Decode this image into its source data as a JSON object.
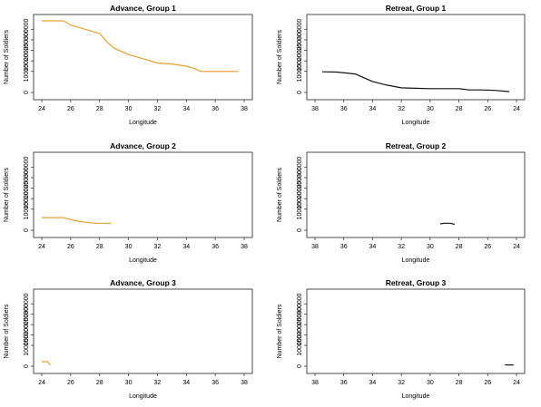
{
  "chart_data": [
    {
      "type": "line",
      "title": "Advance, Group  1",
      "xlabel": "Longitude",
      "ylabel": "Number of Soldiers",
      "xlim": [
        24,
        38
      ],
      "ylim": [
        0,
        340000
      ],
      "x_ticks": [
        "24",
        "26",
        "28",
        "30",
        "32",
        "34",
        "36",
        "38"
      ],
      "y_ticks": [
        "0",
        "100000",
        "150000",
        "200000",
        "250000",
        "300000"
      ],
      "color": "#e8a030",
      "series": [
        {
          "x": [
            24.0,
            25.5,
            26.0,
            27.0,
            28.0,
            28.5,
            29.0,
            30.0,
            31.0,
            32.0,
            33.0,
            34.0,
            34.5,
            35.0,
            35.5,
            36.0,
            36.5,
            37.0,
            37.6
          ],
          "y": [
            340000,
            340000,
            320000,
            300000,
            280000,
            240000,
            210000,
            180000,
            160000,
            140000,
            135000,
            125000,
            115000,
            100000,
            100000,
            100000,
            100000,
            100000,
            100000
          ]
        }
      ]
    },
    {
      "type": "line",
      "title": "Retreat, Group 1",
      "xlabel": "Longitude",
      "ylabel": "Number of Soldiers",
      "xlim": [
        38,
        24
      ],
      "ylim": [
        0,
        340000
      ],
      "x_ticks": [
        "38",
        "36",
        "34",
        "32",
        "30",
        "28",
        "26",
        "24"
      ],
      "y_ticks": [
        "0",
        "100000",
        "150000",
        "200000",
        "250000",
        "300000"
      ],
      "color": "#111111",
      "series": [
        {
          "x": [
            37.5,
            36.5,
            35.2,
            34.0,
            33.0,
            32.0,
            31.0,
            30.0,
            29.0,
            28.0,
            27.3,
            26.5,
            25.5,
            24.5
          ],
          "y": [
            98000,
            97000,
            88000,
            52000,
            35000,
            22000,
            20000,
            18000,
            18000,
            18000,
            12000,
            12000,
            10000,
            4000
          ]
        }
      ]
    },
    {
      "type": "line",
      "title": "Advance, Group  2",
      "xlabel": "Longitude",
      "ylabel": "Number of Soldiers",
      "xlim": [
        24,
        38
      ],
      "ylim": [
        0,
        340000
      ],
      "x_ticks": [
        "24",
        "26",
        "28",
        "30",
        "32",
        "34",
        "36",
        "38"
      ],
      "y_ticks": [
        "0",
        "100000",
        "150000",
        "200000",
        "250000",
        "300000"
      ],
      "color": "#e8a030",
      "series": [
        {
          "x": [
            24.0,
            25.5,
            26.3,
            27.0,
            27.7,
            28.8
          ],
          "y": [
            60000,
            60000,
            45000,
            38000,
            33000,
            33000
          ]
        }
      ]
    },
    {
      "type": "line",
      "title": "Retreat, Group 2",
      "xlabel": "Longitude",
      "ylabel": "Number of Soldiers",
      "xlim": [
        38,
        24
      ],
      "ylim": [
        0,
        340000
      ],
      "x_ticks": [
        "38",
        "36",
        "34",
        "32",
        "30",
        "28",
        "26",
        "24"
      ],
      "y_ticks": [
        "0",
        "100000",
        "150000",
        "200000",
        "250000",
        "300000"
      ],
      "color": "#111111",
      "series": [
        {
          "x": [
            29.3,
            29.0,
            28.6,
            28.3
          ],
          "y": [
            30000,
            33000,
            33000,
            28000
          ]
        }
      ]
    },
    {
      "type": "line",
      "title": "Advance, Group  3",
      "xlabel": "Longitude",
      "ylabel": "Number of Soldiers",
      "xlim": [
        24,
        38
      ],
      "ylim": [
        0,
        340000
      ],
      "x_ticks": [
        "24",
        "26",
        "28",
        "30",
        "32",
        "34",
        "36",
        "38"
      ],
      "y_ticks": [
        "0",
        "100000",
        "150000",
        "200000",
        "250000",
        "300000"
      ],
      "color": "#e8a030",
      "series": [
        {
          "x": [
            24.0,
            24.4,
            24.5,
            24.6
          ],
          "y": [
            22000,
            22000,
            12000,
            6000
          ]
        }
      ]
    },
    {
      "type": "line",
      "title": "Retreat, Group 3",
      "xlabel": "Longitude",
      "ylabel": "Number of Soldiers",
      "xlim": [
        38,
        24
      ],
      "ylim": [
        0,
        340000
      ],
      "x_ticks": [
        "38",
        "36",
        "34",
        "32",
        "30",
        "28",
        "26",
        "24"
      ],
      "y_ticks": [
        "0",
        "100000",
        "150000",
        "200000",
        "250000",
        "300000"
      ],
      "color": "#111111",
      "series": [
        {
          "x": [
            24.8,
            24.2
          ],
          "y": [
            6000,
            6000
          ]
        }
      ]
    }
  ]
}
